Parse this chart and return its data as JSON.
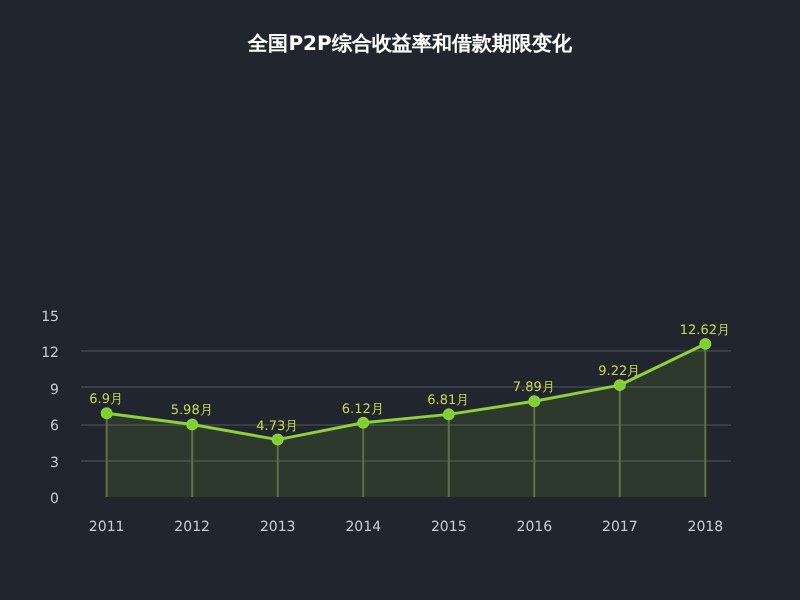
{
  "chart_data": {
    "type": "area",
    "title": "全国P2P综合收益率和借款期限变化",
    "categories": [
      "2011",
      "2012",
      "2013",
      "2014",
      "2015",
      "2016",
      "2017",
      "2018"
    ],
    "series": [
      {
        "color": "#8ed13a",
        "values": [
          6.9,
          5.98,
          4.73,
          6.12,
          6.81,
          7.89,
          9.22,
          12.62
        ],
        "value_labels": [
          "6.9月",
          "5.98月",
          "4.73月",
          "6.12月",
          "6.81月",
          "7.89月",
          "9.22月",
          "12.62月"
        ],
        "errors": [
          [
            0,
            6.9
          ],
          [
            0,
            5.98
          ],
          [
            0,
            4.73
          ],
          [
            0,
            6.12
          ],
          [
            0,
            6.81
          ],
          [
            0,
            7.89
          ],
          [
            0,
            9.22
          ],
          [
            0,
            12.62
          ]
        ]
      }
    ],
    "ylim": [
      0,
      15
    ],
    "yticks": [
      0,
      3,
      6,
      9,
      12,
      15
    ],
    "grid": "y",
    "marker": "circle",
    "line_style": "solid"
  }
}
